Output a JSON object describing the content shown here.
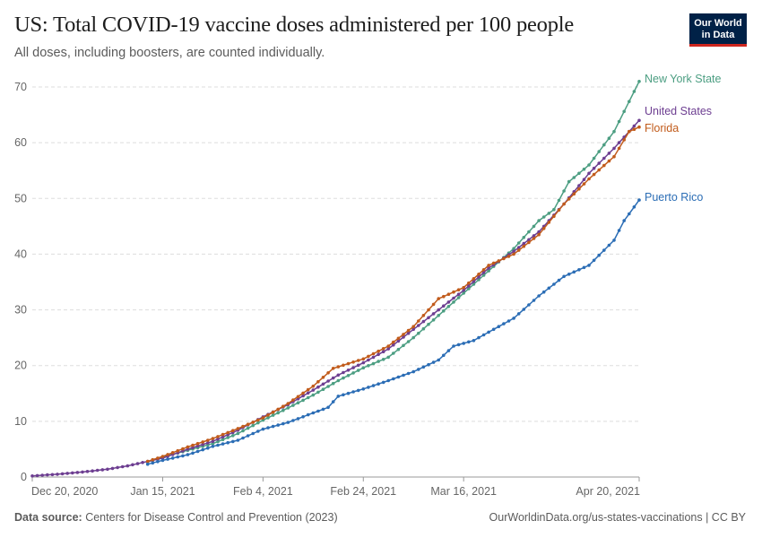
{
  "header": {
    "title": "US: Total COVID-19 vaccine doses administered per 100 people",
    "subtitle": "All doses, including boosters, are counted individually.",
    "logo_line1": "Our World",
    "logo_line2": "in Data"
  },
  "footer": {
    "source_label": "Data source:",
    "source_text": " Centers for Disease Control and Prevention (2023)",
    "url_text": "OurWorldinData.org/us-states-vaccinations | CC BY"
  },
  "chart_data": {
    "type": "line",
    "title": "US: Total COVID-19 vaccine doses administered per 100 people",
    "subtitle": "All doses, including boosters, are counted individually.",
    "x_tick_labels": [
      "Dec 20, 2020",
      "Jan 15, 2021",
      "Feb 4, 2021",
      "Feb 24, 2021",
      "Mar 16, 2021",
      "Apr 20, 2021"
    ],
    "x_ticks": [
      "2020-12-20",
      "2021-01-15",
      "2021-02-04",
      "2021-02-24",
      "2021-03-16",
      "2021-04-20"
    ],
    "xlim": [
      "2020-12-20",
      "2021-04-20"
    ],
    "ylim": [
      0,
      70
    ],
    "y_ticks": [
      0,
      10,
      20,
      30,
      40,
      50,
      60,
      70
    ],
    "grid": "horizontal dashed",
    "legend": "inline labels at line ends (right)",
    "series": [
      {
        "name": "New York State",
        "color": "#4c9e82",
        "points": [
          [
            "2021-01-12",
            2.7
          ],
          [
            "2021-01-15",
            3.6
          ],
          [
            "2021-01-20",
            4.8
          ],
          [
            "2021-01-25",
            6.0
          ],
          [
            "2021-01-30",
            7.8
          ],
          [
            "2021-02-04",
            10.2
          ],
          [
            "2021-02-09",
            12.4
          ],
          [
            "2021-02-14",
            14.7
          ],
          [
            "2021-02-19",
            17.3
          ],
          [
            "2021-02-24",
            19.6
          ],
          [
            "2021-03-01",
            21.5
          ],
          [
            "2021-03-06",
            25.0
          ],
          [
            "2021-03-11",
            29.0
          ],
          [
            "2021-03-16",
            33.0
          ],
          [
            "2021-03-21",
            37.0
          ],
          [
            "2021-03-26",
            41.0
          ],
          [
            "2021-03-31",
            46.0
          ],
          [
            "2021-04-03",
            48.0
          ],
          [
            "2021-04-06",
            53.0
          ],
          [
            "2021-04-10",
            56.0
          ],
          [
            "2021-04-15",
            62.0
          ],
          [
            "2021-04-20",
            71.0
          ]
        ]
      },
      {
        "name": "United States",
        "color": "#6d3e91",
        "points": [
          [
            "2020-12-20",
            0.2
          ],
          [
            "2020-12-25",
            0.5
          ],
          [
            "2020-12-30",
            0.9
          ],
          [
            "2021-01-04",
            1.4
          ],
          [
            "2021-01-08",
            2.0
          ],
          [
            "2021-01-12",
            2.8
          ],
          [
            "2021-01-15",
            3.4
          ],
          [
            "2021-01-20",
            5.0
          ],
          [
            "2021-01-25",
            6.4
          ],
          [
            "2021-01-30",
            8.4
          ],
          [
            "2021-02-04",
            10.8
          ],
          [
            "2021-02-09",
            13.0
          ],
          [
            "2021-02-14",
            15.6
          ],
          [
            "2021-02-19",
            18.3
          ],
          [
            "2021-02-24",
            20.5
          ],
          [
            "2021-03-01",
            23.0
          ],
          [
            "2021-03-06",
            26.5
          ],
          [
            "2021-03-11",
            30.0
          ],
          [
            "2021-03-16",
            33.5
          ],
          [
            "2021-03-21",
            37.5
          ],
          [
            "2021-03-26",
            40.5
          ],
          [
            "2021-03-31",
            44.0
          ],
          [
            "2021-04-05",
            49.0
          ],
          [
            "2021-04-10",
            54.5
          ],
          [
            "2021-04-15",
            59.0
          ],
          [
            "2021-04-20",
            64.0
          ]
        ]
      },
      {
        "name": "Florida",
        "color": "#c15b1b",
        "points": [
          [
            "2021-01-12",
            2.8
          ],
          [
            "2021-01-15",
            3.7
          ],
          [
            "2021-01-20",
            5.4
          ],
          [
            "2021-01-25",
            6.9
          ],
          [
            "2021-01-30",
            8.7
          ],
          [
            "2021-02-04",
            10.6
          ],
          [
            "2021-02-09",
            13.2
          ],
          [
            "2021-02-14",
            16.3
          ],
          [
            "2021-02-18",
            19.5
          ],
          [
            "2021-02-24",
            21.2
          ],
          [
            "2021-03-01",
            23.5
          ],
          [
            "2021-03-06",
            27.0
          ],
          [
            "2021-03-11",
            32.0
          ],
          [
            "2021-03-16",
            34.0
          ],
          [
            "2021-03-21",
            38.0
          ],
          [
            "2021-03-26",
            40.0
          ],
          [
            "2021-03-31",
            43.5
          ],
          [
            "2021-04-05",
            49.0
          ],
          [
            "2021-04-10",
            53.5
          ],
          [
            "2021-04-15",
            57.5
          ],
          [
            "2021-04-18",
            62.0
          ],
          [
            "2021-04-20",
            62.8
          ]
        ]
      },
      {
        "name": "Puerto Rico",
        "color": "#2b6db5",
        "points": [
          [
            "2021-01-12",
            2.3
          ],
          [
            "2021-01-15",
            3.0
          ],
          [
            "2021-01-20",
            4.0
          ],
          [
            "2021-01-25",
            5.5
          ],
          [
            "2021-01-30",
            6.6
          ],
          [
            "2021-02-04",
            8.6
          ],
          [
            "2021-02-09",
            9.8
          ],
          [
            "2021-02-14",
            11.5
          ],
          [
            "2021-02-17",
            12.5
          ],
          [
            "2021-02-19",
            14.5
          ],
          [
            "2021-02-24",
            15.8
          ],
          [
            "2021-03-01",
            17.3
          ],
          [
            "2021-03-06",
            18.9
          ],
          [
            "2021-03-11",
            21.0
          ],
          [
            "2021-03-14",
            23.5
          ],
          [
            "2021-03-18",
            24.5
          ],
          [
            "2021-03-26",
            28.5
          ],
          [
            "2021-03-31",
            32.5
          ],
          [
            "2021-04-05",
            36.0
          ],
          [
            "2021-04-10",
            38.0
          ],
          [
            "2021-04-15",
            42.5
          ],
          [
            "2021-04-17",
            46.0
          ],
          [
            "2021-04-20",
            49.7
          ]
        ]
      }
    ]
  }
}
